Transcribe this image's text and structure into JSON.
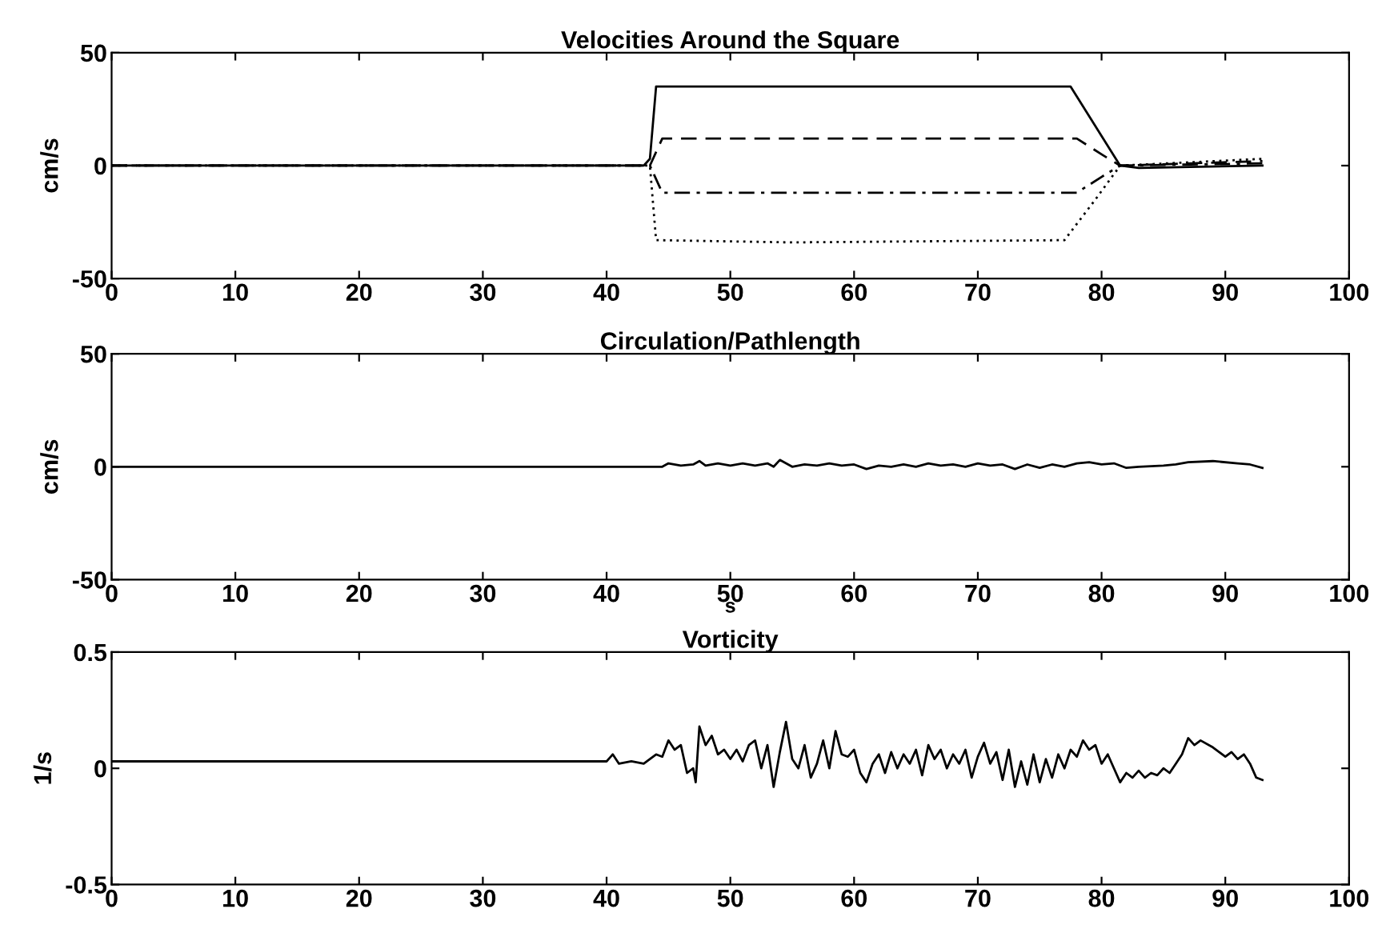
{
  "chart_data": [
    {
      "type": "line",
      "title": "Velocities Around the Square",
      "ylabel": "cm/s",
      "xlim": [
        0,
        100
      ],
      "ylim": [
        -50,
        50
      ],
      "xticks": [
        0,
        10,
        20,
        30,
        40,
        50,
        60,
        70,
        80,
        90,
        100
      ],
      "yticks": [
        -50,
        0,
        50
      ],
      "grid": false,
      "legend": false,
      "marker": "none",
      "series": [
        {
          "color": "#000000",
          "line_style": "solid",
          "x": [
            0,
            43,
            43.5,
            44,
            77.5,
            81.5,
            83,
            93
          ],
          "values": [
            0,
            0,
            3,
            35,
            35,
            0,
            -1,
            0
          ]
        },
        {
          "color": "#000000",
          "line_style": "dashed",
          "x": [
            0,
            43.5,
            44.5,
            78,
            80,
            81.5,
            93
          ],
          "values": [
            0,
            0,
            12,
            12,
            5,
            0,
            2
          ]
        },
        {
          "color": "#000000",
          "line_style": "dashdot",
          "x": [
            0,
            43.5,
            44.5,
            78,
            80,
            81.5,
            93
          ],
          "values": [
            0,
            0,
            -12,
            -12,
            -5,
            0,
            1
          ]
        },
        {
          "color": "#000000",
          "line_style": "dotted",
          "x": [
            0,
            43.5,
            44,
            55,
            77,
            79.5,
            81.5,
            93
          ],
          "values": [
            0,
            0,
            -33,
            -34,
            -33,
            -15,
            0,
            3
          ]
        }
      ]
    },
    {
      "type": "line",
      "title": "Circulation/Pathlength",
      "ylabel": "cm/s",
      "xlabel": "s",
      "xlim": [
        0,
        100
      ],
      "ylim": [
        -50,
        50
      ],
      "xticks": [
        0,
        10,
        20,
        30,
        40,
        50,
        60,
        70,
        80,
        90,
        100
      ],
      "yticks": [
        -50,
        0,
        50
      ],
      "grid": false,
      "legend": false,
      "marker": "none",
      "series": [
        {
          "color": "#000000",
          "line_style": "solid",
          "x": [
            0,
            44.5,
            45,
            46,
            47,
            47.5,
            48,
            49,
            50,
            51,
            52,
            53,
            53.5,
            54,
            55,
            56,
            57,
            58,
            59,
            60,
            61,
            62,
            63,
            64,
            65,
            66,
            67,
            68,
            69,
            70,
            71,
            72,
            73,
            74,
            75,
            76,
            77,
            78,
            79,
            80,
            81,
            82,
            83,
            85,
            86,
            87,
            89,
            91,
            92,
            93
          ],
          "values": [
            0,
            0,
            1.5,
            0.5,
            1,
            2.5,
            0.5,
            1.5,
            0.5,
            1.5,
            0.5,
            1.5,
            0,
            3,
            0,
            1,
            0.5,
            1.5,
            0.5,
            1,
            -1,
            0.5,
            0,
            1,
            0,
            1.5,
            0.5,
            1,
            0,
            1.5,
            0.5,
            1,
            -1,
            1,
            -0.5,
            1,
            0,
            1.5,
            2,
            1,
            1.5,
            -0.5,
            0,
            0.5,
            1,
            2,
            2.5,
            1.5,
            1,
            -0.5
          ]
        }
      ]
    },
    {
      "type": "line",
      "title": "Vorticity",
      "ylabel": "1/s",
      "xlim": [
        0,
        100
      ],
      "ylim": [
        -0.5,
        0.5
      ],
      "xticks": [
        0,
        10,
        20,
        30,
        40,
        50,
        60,
        70,
        80,
        90,
        100
      ],
      "yticks": [
        -0.5,
        0,
        0.5
      ],
      "grid": false,
      "legend": false,
      "marker": "none",
      "series": [
        {
          "color": "#000000",
          "line_style": "solid",
          "x": [
            0,
            40,
            40.5,
            41,
            42,
            43,
            44,
            44.5,
            45,
            45.5,
            46,
            46.5,
            47,
            47.2,
            47.5,
            48,
            48.5,
            49,
            49.5,
            50,
            50.5,
            51,
            51.5,
            52,
            52.5,
            53,
            53.5,
            54,
            54.5,
            55,
            55.5,
            56,
            56.5,
            57,
            57.5,
            58,
            58.5,
            59,
            59.5,
            60,
            60.5,
            61,
            61.5,
            62,
            62.5,
            63,
            63.5,
            64,
            64.5,
            65,
            65.5,
            66,
            66.5,
            67,
            67.5,
            68,
            68.5,
            69,
            69.5,
            70,
            70.5,
            71,
            71.5,
            72,
            72.5,
            73,
            73.5,
            74,
            74.5,
            75,
            75.5,
            76,
            76.5,
            77,
            77.5,
            78,
            78.5,
            79,
            79.5,
            80,
            80.5,
            81,
            81.5,
            82,
            82.5,
            83,
            83.5,
            84,
            84.5,
            85,
            85.5,
            86,
            86.5,
            87,
            87.5,
            88,
            89,
            90,
            90.5,
            91,
            91.5,
            92,
            92.5,
            93
          ],
          "values": [
            0.03,
            0.03,
            0.06,
            0.02,
            0.03,
            0.02,
            0.06,
            0.05,
            0.12,
            0.08,
            0.1,
            -0.02,
            0.0,
            -0.06,
            0.18,
            0.1,
            0.14,
            0.06,
            0.08,
            0.04,
            0.08,
            0.03,
            0.1,
            0.12,
            0.0,
            0.1,
            -0.08,
            0.07,
            0.2,
            0.04,
            0.0,
            0.1,
            -0.04,
            0.02,
            0.12,
            0.0,
            0.16,
            0.06,
            0.05,
            0.08,
            -0.02,
            -0.06,
            0.02,
            0.06,
            -0.02,
            0.07,
            0.0,
            0.06,
            0.02,
            0.08,
            -0.03,
            0.1,
            0.04,
            0.08,
            0.0,
            0.06,
            0.02,
            0.08,
            -0.04,
            0.05,
            0.11,
            0.02,
            0.07,
            -0.05,
            0.08,
            -0.08,
            0.03,
            -0.07,
            0.06,
            -0.06,
            0.04,
            -0.04,
            0.06,
            0.0,
            0.08,
            0.05,
            0.12,
            0.08,
            0.1,
            0.02,
            0.06,
            0.0,
            -0.06,
            -0.02,
            -0.04,
            -0.01,
            -0.04,
            -0.02,
            -0.03,
            0.0,
            -0.02,
            0.02,
            0.06,
            0.13,
            0.1,
            0.12,
            0.09,
            0.05,
            0.07,
            0.04,
            0.06,
            0.02,
            -0.04,
            -0.05
          ]
        }
      ]
    }
  ]
}
